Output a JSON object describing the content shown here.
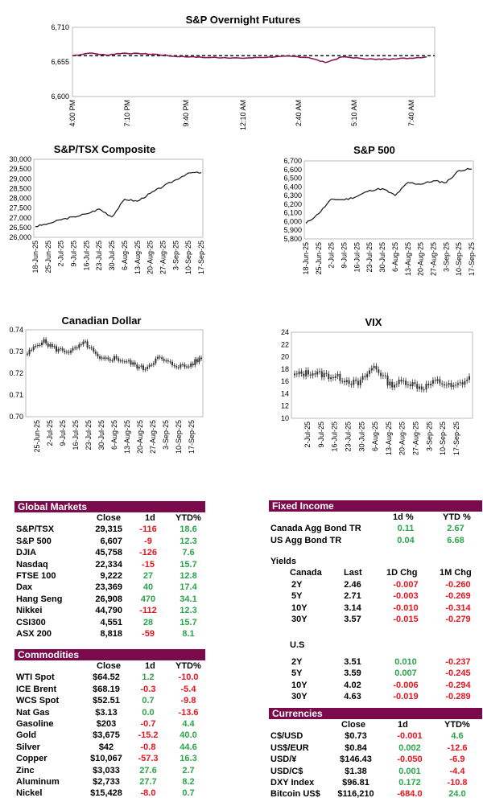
{
  "charts": {
    "futures": {
      "title": "S&P Overnight Futures",
      "y_ticks": [
        "6,710",
        "6,655",
        "6,600"
      ],
      "x_ticks": [
        "4:00 PM",
        "7:10 PM",
        "9:40 PM",
        "12:10 AM",
        "2:40 AM",
        "5:10 AM",
        "7:40 AM"
      ]
    },
    "tsx": {
      "title": "S&P/TSX Composite",
      "y_ticks": [
        "30,000",
        "29,500",
        "29,000",
        "28,500",
        "28,000",
        "27,500",
        "27,000",
        "26,500",
        "26,000"
      ],
      "x_ticks": [
        "18-Jun-25",
        "25-Jun-25",
        "2-Jul-25",
        "9-Jul-25",
        "16-Jul-25",
        "23-Jul-25",
        "30-Jul-25",
        "6-Aug-25",
        "13-Aug-25",
        "20-Aug-25",
        "27-Aug-25",
        "3-Sep-25",
        "10-Sep-25",
        "17-Sep-25"
      ]
    },
    "sp500": {
      "title": "S&P 500",
      "y_ticks": [
        "6,700",
        "6,600",
        "6,500",
        "6,400",
        "6,300",
        "6,200",
        "6,100",
        "6,000",
        "5,900",
        "5,800"
      ],
      "x_ticks": [
        "18-Jun-25",
        "25-Jun-25",
        "2-Jul-25",
        "9-Jul-25",
        "16-Jul-25",
        "23-Jul-25",
        "30-Jul-25",
        "6-Aug-25",
        "13-Aug-25",
        "20-Aug-25",
        "27-Aug-25",
        "3-Sep-25",
        "10-Sep-25",
        "17-Sep-25"
      ]
    },
    "cad": {
      "title": "Canadian Dollar",
      "y_ticks": [
        "0.74",
        "0.73",
        "0.72",
        "0.71",
        "0.70"
      ],
      "x_ticks": [
        "25-Jun-25",
        "2-Jul-25",
        "9-Jul-25",
        "16-Jul-25",
        "23-Jul-25",
        "30-Jul-25",
        "6-Aug-25",
        "13-Aug-25",
        "20-Aug-25",
        "27-Aug-25",
        "3-Sep-25",
        "10-Sep-25",
        "17-Sep-25"
      ]
    },
    "vix": {
      "title": "VIX",
      "y_ticks": [
        "24",
        "22",
        "20",
        "18",
        "16",
        "14",
        "12",
        "10"
      ],
      "x_ticks": [
        "2-Jul-25",
        "9-Jul-25",
        "16-Jul-25",
        "23-Jul-25",
        "30-Jul-25",
        "6-Aug-25",
        "13-Aug-25",
        "20-Aug-25",
        "27-Aug-25",
        "3-Sep-25",
        "10-Sep-25",
        "17-Sep-25"
      ]
    }
  },
  "chart_data": [
    {
      "type": "line",
      "title": "S&P Overnight Futures",
      "ylim": [
        6600,
        6710
      ],
      "reference_line": 6665,
      "x": [
        "4:00 PM",
        "5:00 PM",
        "6:00 PM",
        "7:10 PM",
        "8:00 PM",
        "9:00 PM",
        "9:40 PM",
        "10:30 PM",
        "11:30 PM",
        "12:10 AM",
        "1:00 AM",
        "2:00 AM",
        "2:40 AM",
        "3:30 AM",
        "4:30 AM",
        "5:00 AM",
        "5:10 AM",
        "6:00 AM",
        "7:00 AM",
        "7:40 AM",
        "8:10 AM",
        "8:30 AM"
      ],
      "values": [
        6665,
        6669,
        6666,
        6669,
        6668,
        6667,
        6664,
        6663,
        6662,
        6662,
        6661,
        6662,
        6663,
        6664,
        6662,
        6654,
        6663,
        6661,
        6659,
        6660,
        6661,
        6663
      ]
    },
    {
      "type": "line",
      "title": "S&P/TSX Composite",
      "ylim": [
        26000,
        30000
      ],
      "x": [
        "18-Jun-25",
        "25-Jun-25",
        "2-Jul-25",
        "9-Jul-25",
        "16-Jul-25",
        "23-Jul-25",
        "30-Jul-25",
        "6-Aug-25",
        "13-Aug-25",
        "20-Aug-25",
        "27-Aug-25",
        "3-Sep-25",
        "10-Sep-25",
        "17-Sep-25"
      ],
      "values": [
        26550,
        26700,
        26900,
        27050,
        27200,
        27450,
        27050,
        27950,
        27850,
        28250,
        28600,
        28950,
        29300,
        29315
      ]
    },
    {
      "type": "line",
      "title": "S&P 500",
      "ylim": [
        5800,
        6700
      ],
      "x": [
        "18-Jun-25",
        "25-Jun-25",
        "2-Jul-25",
        "9-Jul-25",
        "16-Jul-25",
        "23-Jul-25",
        "30-Jul-25",
        "6-Aug-25",
        "13-Aug-25",
        "20-Aug-25",
        "27-Aug-25",
        "3-Sep-25",
        "10-Sep-25",
        "17-Sep-25"
      ],
      "values": [
        5980,
        6090,
        6260,
        6250,
        6290,
        6360,
        6380,
        6300,
        6450,
        6430,
        6470,
        6450,
        6590,
        6607
      ]
    },
    {
      "type": "candlestick",
      "title": "Canadian Dollar",
      "ylim": [
        0.7,
        0.74
      ],
      "x": [
        "25-Jun-25",
        "2-Jul-25",
        "9-Jul-25",
        "16-Jul-25",
        "23-Jul-25",
        "30-Jul-25",
        "6-Aug-25",
        "13-Aug-25",
        "20-Aug-25",
        "27-Aug-25",
        "3-Sep-25",
        "10-Sep-25",
        "17-Sep-25"
      ],
      "values": [
        0.729,
        0.735,
        0.731,
        0.73,
        0.734,
        0.726,
        0.727,
        0.725,
        0.722,
        0.727,
        0.724,
        0.723,
        0.727
      ]
    },
    {
      "type": "candlestick",
      "title": "VIX",
      "ylim": [
        10,
        24
      ],
      "x": [
        "2-Jul-25",
        "9-Jul-25",
        "16-Jul-25",
        "23-Jul-25",
        "30-Jul-25",
        "6-Aug-25",
        "13-Aug-25",
        "20-Aug-25",
        "27-Aug-25",
        "3-Sep-25",
        "10-Sep-25",
        "17-Sep-25"
      ],
      "values": [
        17.0,
        17.5,
        17.0,
        16.5,
        15.5,
        18.5,
        15.5,
        16.0,
        15.0,
        16.0,
        15.0,
        16.5
      ]
    }
  ],
  "global_markets": {
    "title": "Global Markets",
    "headers": [
      "Close",
      "1d",
      "YTD%"
    ],
    "rows": [
      {
        "name": "S&P/TSX",
        "close": "29,315",
        "d1": "-116",
        "ytd": "18.6"
      },
      {
        "name": "S&P 500",
        "close": "6,607",
        "d1": "-9",
        "ytd": "12.3"
      },
      {
        "name": "DJIA",
        "close": "45,758",
        "d1": "-126",
        "ytd": "7.6"
      },
      {
        "name": "Nasdaq",
        "close": "22,334",
        "d1": "-15",
        "ytd": "15.7"
      },
      {
        "name": "FTSE 100",
        "close": "9,222",
        "d1": "27",
        "ytd": "12.8"
      },
      {
        "name": "Dax",
        "close": "23,369",
        "d1": "40",
        "ytd": "17.4"
      },
      {
        "name": "Hang Seng",
        "close": "26,908",
        "d1": "470",
        "ytd": "34.1"
      },
      {
        "name": "Nikkei",
        "close": "44,790",
        "d1": "-112",
        "ytd": "12.3"
      },
      {
        "name": "CSI300",
        "close": "4,551",
        "d1": "28",
        "ytd": "15.7"
      },
      {
        "name": "ASX 200",
        "close": "8,818",
        "d1": "-59",
        "ytd": "8.1"
      }
    ]
  },
  "commodities": {
    "title": "Commodities",
    "headers": [
      "Close",
      "1d",
      "YTD%"
    ],
    "rows": [
      {
        "name": "WTI Spot",
        "close": "$64.52",
        "d1": "1.2",
        "ytd": "-10.0"
      },
      {
        "name": "ICE Brent",
        "close": "$68.19",
        "d1": "-0.3",
        "ytd": "-5.4"
      },
      {
        "name": "WCS Spot",
        "close": "$52.51",
        "d1": "0.7",
        "ytd": "-9.8"
      },
      {
        "name": "Nat Gas",
        "close": "$3.13",
        "d1": "0.0",
        "ytd": "-13.6"
      },
      {
        "name": "Gasoline",
        "close": "$203",
        "d1": "-0.7",
        "ytd": "4.4"
      },
      {
        "name": "Gold",
        "close": "$3,675",
        "d1": "-15.2",
        "ytd": "40.0"
      },
      {
        "name": "Silver",
        "close": "$42",
        "d1": "-0.8",
        "ytd": "44.6"
      },
      {
        "name": "Copper",
        "close": "$10,067",
        "d1": "-57.3",
        "ytd": "16.3"
      },
      {
        "name": "Zinc",
        "close": "$3,033",
        "d1": "27.6",
        "ytd": "2.7"
      },
      {
        "name": "Aluminum",
        "close": "$2,733",
        "d1": "27.7",
        "ytd": "8.2"
      },
      {
        "name": "Nickel",
        "close": "$15,428",
        "d1": "-8.0",
        "ytd": "0.7"
      }
    ]
  },
  "fixed_income": {
    "title": "Fixed Income",
    "headers": [
      "1d %",
      "YTD %"
    ],
    "rows": [
      {
        "name": "Canada Agg Bond TR",
        "d1": "0.11",
        "ytd": "2.67"
      },
      {
        "name": "US Agg Bond TR",
        "d1": "0.04",
        "ytd": "6.68"
      }
    ]
  },
  "yields": {
    "title": "Yields",
    "headers": [
      "Last",
      "1D Chg",
      "1M Chg"
    ],
    "canada_label": "Canada",
    "canada": [
      {
        "name": "2Y",
        "last": "2.46",
        "d1": "-0.007",
        "m1": "-0.260"
      },
      {
        "name": "5Y",
        "last": "2.71",
        "d1": "-0.003",
        "m1": "-0.269"
      },
      {
        "name": "10Y",
        "last": "3.14",
        "d1": "-0.010",
        "m1": "-0.314"
      },
      {
        "name": "30Y",
        "last": "3.57",
        "d1": "-0.015",
        "m1": "-0.279"
      }
    ],
    "us_label": "U.S",
    "us": [
      {
        "name": "2Y",
        "last": "3.51",
        "d1": "0.010",
        "m1": "-0.237"
      },
      {
        "name": "5Y",
        "last": "3.59",
        "d1": "0.007",
        "m1": "-0.245"
      },
      {
        "name": "10Y",
        "last": "4.02",
        "d1": "-0.006",
        "m1": "-0.294"
      },
      {
        "name": "30Y",
        "last": "4.63",
        "d1": "-0.019",
        "m1": "-0.289"
      }
    ]
  },
  "currencies": {
    "title": "Currencies",
    "headers": [
      "Close",
      "1d",
      "YTD%"
    ],
    "rows": [
      {
        "name": "C$/USD",
        "close": "$0.73",
        "d1": "-0.001",
        "ytd": "4.6"
      },
      {
        "name": "US$/EUR",
        "close": "$0.84",
        "d1": "0.002",
        "ytd": "-12.6"
      },
      {
        "name": "USD/¥",
        "close": "$146.43",
        "d1": "-0.050",
        "ytd": "-6.9"
      },
      {
        "name": "USD/C$",
        "close": "$1.38",
        "d1": "0.001",
        "ytd": "-4.4"
      },
      {
        "name": "DXY Index",
        "close": "$96.81",
        "d1": "0.172",
        "ytd": "-10.8"
      },
      {
        "name": "Bitcoin US$",
        "close": "$116,210",
        "d1": "-684.0",
        "ytd": "24.0"
      }
    ]
  },
  "colors": {
    "header": "#7a0a4c",
    "negative": "#e8141e",
    "positive": "#2aa54b",
    "futures_line": "#8b1a5a"
  }
}
